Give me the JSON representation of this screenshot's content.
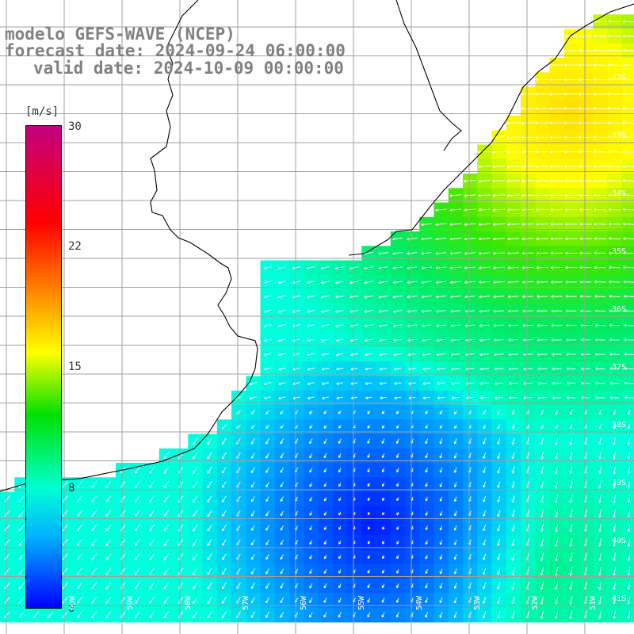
{
  "title": {
    "line1": "modelo GEFS-WAVE (NCEP)",
    "line2": "forecast date: 2024-09-24 06:00:00",
    "line3": "valid date: 2024-10-09 00:00:00"
  },
  "colorbar": {
    "unit": "[m/s]",
    "ticks": [
      "30",
      "22",
      "15",
      "8",
      "0"
    ],
    "colors": [
      "#c2007f",
      "#ff0000",
      "#ff8c00",
      "#ffff00",
      "#00e000",
      "#00ffd0",
      "#00b4ff",
      "#0000ff"
    ]
  },
  "latitude_labels": [
    "32S",
    "33S",
    "34S",
    "35S",
    "36S",
    "37S",
    "38S",
    "39S",
    "40S",
    "41S"
  ],
  "longitude_labels": [
    "60W",
    "59W",
    "58W",
    "57W",
    "56W",
    "55W",
    "54W",
    "53W",
    "52W",
    "51W"
  ],
  "map_colors": {
    "land": "#ffffff",
    "grid": "#a0a0a0",
    "coast": "#000000",
    "arrow": "#ffffff"
  }
}
